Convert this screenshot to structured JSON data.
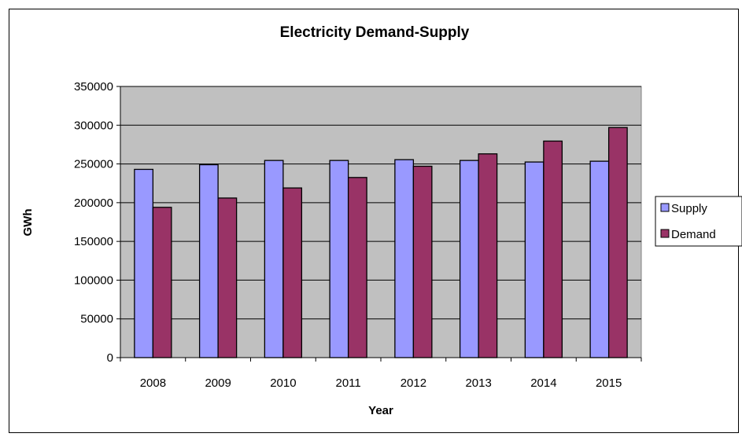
{
  "chart_data": {
    "type": "bar",
    "title": "Electricity Demand-Supply",
    "xlabel": "Year",
    "ylabel": "GWh",
    "categories": [
      "2008",
      "2009",
      "2010",
      "2011",
      "2012",
      "2013",
      "2014",
      "2015"
    ],
    "series": [
      {
        "name": "Supply",
        "color": "#9999ff",
        "values": [
          243000,
          249000,
          254500,
          254500,
          255500,
          254500,
          252500,
          253500
        ]
      },
      {
        "name": "Demand",
        "color": "#993366",
        "values": [
          194000,
          206000,
          219000,
          232500,
          247000,
          263000,
          279500,
          297000
        ]
      }
    ],
    "ylim": [
      0,
      350000
    ],
    "yticks": [
      "0",
      "50000",
      "100000",
      "150000",
      "200000",
      "250000",
      "300000",
      "350000"
    ],
    "grid": true,
    "plot_background": "#c0c0c0",
    "legend_position": "right"
  }
}
